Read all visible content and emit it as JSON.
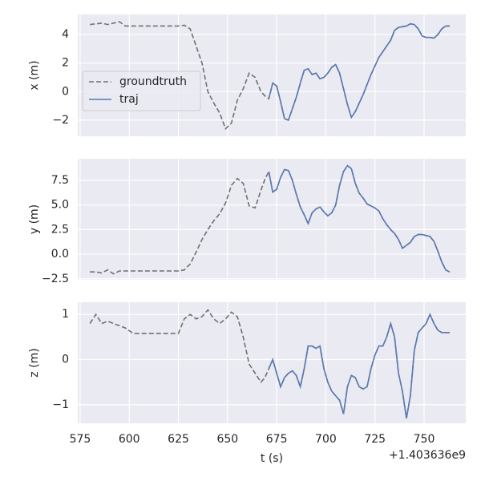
{
  "chart_data": [
    {
      "type": "line",
      "ylabel": "x (m)",
      "legend": "center left",
      "grid": true,
      "xlim": [
        573.8,
        771.2
      ],
      "ylim": [
        -3.13,
        5.41
      ],
      "xticks": [
        575,
        600,
        625,
        650,
        675,
        700,
        725,
        750
      ],
      "yticks": [
        {
          "value": -2,
          "label": "−2"
        },
        0,
        2,
        4
      ],
      "x": [
        580,
        583,
        586,
        589,
        592,
        595,
        598,
        602,
        610,
        620,
        625,
        628,
        631,
        634,
        637,
        640,
        643,
        646,
        649,
        652,
        655,
        658,
        661,
        664,
        667,
        669,
        671,
        673,
        675,
        677,
        679,
        681,
        683,
        685,
        687,
        689,
        691,
        693,
        695,
        697,
        699,
        701,
        703,
        705,
        707,
        709,
        711,
        713,
        715,
        717,
        719,
        721,
        723,
        725,
        727,
        729,
        731,
        733,
        735,
        737,
        739,
        741,
        743,
        745,
        747,
        749,
        751,
        753,
        755,
        757,
        759,
        761,
        763
      ],
      "series": [
        {
          "name": "groundtruth",
          "color": "#707070",
          "linestyle": "dashed",
          "values": [
            4.7,
            4.75,
            4.8,
            4.7,
            4.8,
            4.9,
            4.6,
            4.6,
            4.6,
            4.6,
            4.6,
            4.65,
            4.4,
            3.2,
            2.0,
            0.0,
            -0.8,
            -1.5,
            -2.6,
            -2.2,
            -0.6,
            0.2,
            1.3,
            1.0,
            0.0,
            -0.3,
            -0.5,
            0.6,
            0.4,
            -0.7,
            -1.9,
            -2.0,
            -1.2,
            -0.4,
            0.6,
            1.5,
            1.6,
            1.2,
            1.3,
            0.9,
            1.0,
            1.3,
            1.7,
            1.9,
            1.3,
            0.2,
            -0.9,
            -1.8,
            -1.4,
            -0.8,
            -0.2,
            0.5,
            1.2,
            1.8,
            2.4,
            2.8,
            3.2,
            3.6,
            4.3,
            4.5,
            4.55,
            4.6,
            4.75,
            4.7,
            4.4,
            3.9,
            3.8,
            3.8,
            3.75,
            4.0,
            4.4,
            4.6,
            4.6
          ]
        },
        {
          "name": "traj",
          "color": "#5a78b0",
          "linestyle": "solid",
          "values": [
            null,
            null,
            null,
            null,
            null,
            null,
            null,
            null,
            null,
            null,
            null,
            null,
            null,
            null,
            null,
            null,
            null,
            null,
            null,
            null,
            null,
            null,
            null,
            null,
            null,
            null,
            -0.5,
            0.6,
            0.4,
            -0.7,
            -1.9,
            -2.0,
            -1.2,
            -0.4,
            0.6,
            1.5,
            1.6,
            1.2,
            1.3,
            0.9,
            1.0,
            1.3,
            1.7,
            1.9,
            1.3,
            0.2,
            -0.9,
            -1.8,
            -1.4,
            -0.8,
            -0.2,
            0.5,
            1.2,
            1.8,
            2.4,
            2.8,
            3.2,
            3.6,
            4.3,
            4.5,
            4.55,
            4.6,
            4.75,
            4.7,
            4.4,
            3.9,
            3.8,
            3.8,
            3.75,
            4.0,
            4.4,
            4.6,
            4.6
          ]
        }
      ]
    },
    {
      "type": "line",
      "ylabel": "y (m)",
      "grid": true,
      "xlim": [
        573.8,
        771.2
      ],
      "ylim": [
        -2.6,
        9.7
      ],
      "xticks": [
        575,
        600,
        625,
        650,
        675,
        700,
        725,
        750
      ],
      "yticks": [
        {
          "value": -2.5,
          "label": "−2.5"
        },
        {
          "value": 0,
          "label": "0.0"
        },
        {
          "value": 2.5,
          "label": "2.5"
        },
        {
          "value": 5,
          "label": "5.0"
        },
        {
          "value": 7.5,
          "label": "7.5"
        }
      ],
      "x": [
        580,
        583,
        586,
        589,
        592,
        595,
        598,
        602,
        610,
        620,
        625,
        628,
        631,
        634,
        637,
        640,
        643,
        646,
        649,
        652,
        655,
        658,
        661,
        664,
        667,
        669,
        671,
        673,
        675,
        677,
        679,
        681,
        683,
        685,
        687,
        689,
        691,
        693,
        695,
        697,
        699,
        701,
        703,
        705,
        707,
        709,
        711,
        713,
        715,
        717,
        719,
        721,
        723,
        725,
        727,
        729,
        731,
        733,
        735,
        737,
        739,
        741,
        743,
        745,
        747,
        749,
        751,
        753,
        755,
        757,
        759,
        761,
        763
      ],
      "series": [
        {
          "name": "groundtruth",
          "color": "#707070",
          "linestyle": "dashed",
          "values": [
            -1.8,
            -1.8,
            -1.9,
            -1.6,
            -2.0,
            -1.7,
            -1.7,
            -1.7,
            -1.7,
            -1.7,
            -1.7,
            -1.6,
            -1.0,
            0.2,
            1.5,
            2.5,
            3.4,
            4.1,
            5.2,
            7.0,
            7.7,
            7.2,
            4.9,
            4.7,
            6.5,
            7.6,
            8.4,
            6.3,
            6.6,
            7.8,
            8.6,
            8.5,
            7.5,
            6.1,
            4.8,
            4.0,
            3.1,
            4.2,
            4.6,
            4.8,
            4.3,
            3.9,
            4.2,
            5.0,
            7.0,
            8.4,
            9.0,
            8.7,
            7.2,
            6.2,
            5.7,
            5.1,
            4.9,
            4.7,
            4.4,
            3.6,
            3.0,
            2.5,
            2.1,
            1.5,
            0.6,
            0.9,
            1.2,
            1.8,
            2.0,
            2.0,
            1.9,
            1.8,
            1.3,
            0.3,
            -0.8,
            -1.6,
            -1.8
          ]
        },
        {
          "name": "traj",
          "color": "#5a78b0",
          "linestyle": "solid",
          "values": [
            null,
            null,
            null,
            null,
            null,
            null,
            null,
            null,
            null,
            null,
            null,
            null,
            null,
            null,
            null,
            null,
            null,
            null,
            null,
            null,
            null,
            null,
            null,
            null,
            null,
            null,
            8.4,
            6.3,
            6.6,
            7.8,
            8.6,
            8.5,
            7.5,
            6.1,
            4.8,
            4.0,
            3.1,
            4.2,
            4.6,
            4.8,
            4.3,
            3.9,
            4.2,
            5.0,
            7.0,
            8.4,
            9.0,
            8.7,
            7.2,
            6.2,
            5.7,
            5.1,
            4.9,
            4.7,
            4.4,
            3.6,
            3.0,
            2.5,
            2.1,
            1.5,
            0.6,
            0.9,
            1.2,
            1.8,
            2.0,
            2.0,
            1.9,
            1.8,
            1.3,
            0.3,
            -0.8,
            -1.6,
            -1.8
          ]
        }
      ]
    },
    {
      "type": "line",
      "ylabel": "z (m)",
      "xlabel": "t (s)",
      "x_offset_label": "+1.403636e9",
      "grid": true,
      "xlim": [
        573.8,
        771.2
      ],
      "ylim": [
        -1.41,
        1.27
      ],
      "xticks": [
        575,
        600,
        625,
        650,
        675,
        700,
        725,
        750
      ],
      "yticks": [
        {
          "value": -1,
          "label": "−1"
        },
        0,
        1
      ],
      "x": [
        580,
        583,
        586,
        589,
        592,
        595,
        598,
        602,
        610,
        620,
        625,
        628,
        631,
        634,
        637,
        640,
        643,
        646,
        649,
        652,
        655,
        658,
        661,
        664,
        667,
        669,
        671,
        673,
        675,
        677,
        679,
        681,
        683,
        685,
        687,
        689,
        691,
        693,
        695,
        697,
        699,
        701,
        703,
        705,
        707,
        709,
        711,
        713,
        715,
        717,
        719,
        721,
        723,
        725,
        727,
        729,
        731,
        733,
        735,
        737,
        739,
        741,
        743,
        745,
        747,
        749,
        751,
        753,
        755,
        757,
        759,
        761,
        763
      ],
      "series": [
        {
          "name": "groundtruth",
          "color": "#707070",
          "linestyle": "dashed",
          "values": [
            0.8,
            1.0,
            0.8,
            0.85,
            0.8,
            0.75,
            0.7,
            0.58,
            0.58,
            0.58,
            0.58,
            0.9,
            1.0,
            0.9,
            0.95,
            1.1,
            0.9,
            0.8,
            0.9,
            1.05,
            0.95,
            0.5,
            -0.1,
            -0.3,
            -0.5,
            -0.4,
            -0.2,
            0.0,
            -0.3,
            -0.6,
            -0.4,
            -0.3,
            -0.25,
            -0.35,
            -0.6,
            -0.2,
            0.3,
            0.3,
            0.25,
            0.3,
            -0.2,
            -0.5,
            -0.7,
            -0.8,
            -0.9,
            -1.2,
            -0.6,
            -0.35,
            -0.4,
            -0.6,
            -0.65,
            -0.6,
            -0.2,
            0.1,
            0.3,
            0.3,
            0.5,
            0.8,
            0.5,
            -0.3,
            -0.7,
            -1.3,
            -0.8,
            0.2,
            0.6,
            0.7,
            0.8,
            1.0,
            0.8,
            0.65,
            0.6,
            0.6,
            0.6
          ]
        },
        {
          "name": "traj",
          "color": "#5a78b0",
          "linestyle": "solid",
          "values": [
            null,
            null,
            null,
            null,
            null,
            null,
            null,
            null,
            null,
            null,
            null,
            null,
            null,
            null,
            null,
            null,
            null,
            null,
            null,
            null,
            null,
            null,
            null,
            null,
            null,
            null,
            -0.2,
            0.0,
            -0.3,
            -0.6,
            -0.4,
            -0.3,
            -0.25,
            -0.35,
            -0.6,
            -0.2,
            0.3,
            0.3,
            0.25,
            0.3,
            -0.2,
            -0.5,
            -0.7,
            -0.8,
            -0.9,
            -1.2,
            -0.6,
            -0.35,
            -0.4,
            -0.6,
            -0.65,
            -0.6,
            -0.2,
            0.1,
            0.3,
            0.3,
            0.5,
            0.8,
            0.5,
            -0.3,
            -0.7,
            -1.3,
            -0.8,
            0.2,
            0.6,
            0.7,
            0.8,
            1.0,
            0.8,
            0.65,
            0.6,
            0.6,
            0.6
          ]
        }
      ]
    }
  ]
}
